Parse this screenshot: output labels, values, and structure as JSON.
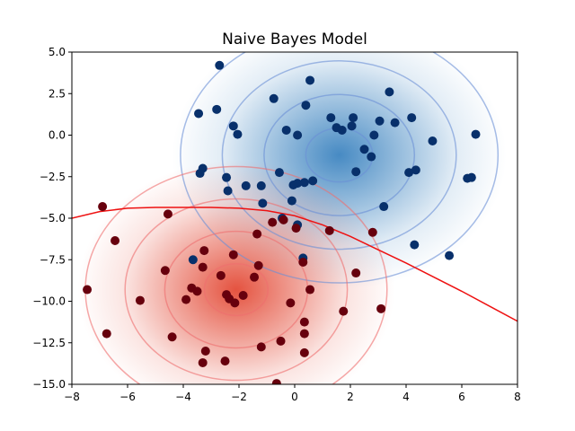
{
  "chart_data": {
    "type": "scatter",
    "title": "Naive Bayes Model",
    "xlabel": "",
    "ylabel": "",
    "xlim": [
      -8,
      8
    ],
    "ylim": [
      -15,
      5
    ],
    "x_ticks": [
      -8,
      -6,
      -4,
      -2,
      0,
      2,
      4,
      6,
      8
    ],
    "x_tick_labels": [
      "−8",
      "−6",
      "−4",
      "−2",
      "0",
      "2",
      "4",
      "6",
      "8"
    ],
    "y_ticks": [
      5,
      2.5,
      0,
      -2.5,
      -5,
      -7.5,
      -10,
      -12.5,
      -15
    ],
    "y_tick_labels": [
      "5.0",
      "2.5",
      "0.0",
      "−2.5",
      "−5.0",
      "−7.5",
      "−10.0",
      "−12.5",
      "−15.0"
    ],
    "grid": false,
    "class_distributions": [
      {
        "color": "#6a8fd6",
        "center": [
          1.6,
          -1.2
        ],
        "sigma": [
          2.0,
          2.7
        ],
        "cmap_top": "#3d84c0"
      },
      {
        "color": "#ee6e6e",
        "center": [
          -2.1,
          -9.3
        ],
        "sigma": [
          1.9,
          2.6
        ],
        "cmap_top": "#e34a36"
      }
    ],
    "contour_levels_sigma": [
      0.6,
      1.35,
      2.1,
      2.85
    ],
    "decision_boundary": {
      "color": "#ee1111",
      "x": [
        -8,
        -7,
        -6,
        -5,
        -4,
        -3,
        -2,
        -1,
        0,
        1,
        2,
        3,
        4,
        5,
        6,
        7,
        8
      ],
      "y": [
        -5.0,
        -4.6,
        -4.4,
        -4.35,
        -4.35,
        -4.35,
        -4.4,
        -4.55,
        -4.85,
        -5.4,
        -6.1,
        -6.9,
        -7.7,
        -8.55,
        -9.4,
        -10.3,
        -11.2
      ]
    },
    "series": [
      {
        "color": "#08306b",
        "points": [
          [
            -2.7,
            4.2
          ],
          [
            0.55,
            3.3
          ],
          [
            3.4,
            2.6
          ],
          [
            -0.75,
            2.2
          ],
          [
            0.4,
            1.8
          ],
          [
            -3.45,
            1.3
          ],
          [
            -2.8,
            1.55
          ],
          [
            1.3,
            1.05
          ],
          [
            2.1,
            1.05
          ],
          [
            3.05,
            0.85
          ],
          [
            3.6,
            0.75
          ],
          [
            4.2,
            1.05
          ],
          [
            2.05,
            0.55
          ],
          [
            1.5,
            0.45
          ],
          [
            1.7,
            0.3
          ],
          [
            -2.2,
            0.55
          ],
          [
            -2.05,
            0.05
          ],
          [
            -0.3,
            0.3
          ],
          [
            0.1,
            0.0
          ],
          [
            2.85,
            0.0
          ],
          [
            4.95,
            -0.35
          ],
          [
            6.5,
            0.05
          ],
          [
            2.5,
            -0.85
          ],
          [
            2.75,
            -1.3
          ],
          [
            -3.3,
            -2.0
          ],
          [
            -3.4,
            -2.3
          ],
          [
            2.2,
            -2.2
          ],
          [
            4.35,
            -2.1
          ],
          [
            4.1,
            -2.25
          ],
          [
            -2.45,
            -2.55
          ],
          [
            -0.55,
            -2.25
          ],
          [
            0.65,
            -2.75
          ],
          [
            0.35,
            -2.85
          ],
          [
            0.1,
            -2.9
          ],
          [
            -0.05,
            -3.0
          ],
          [
            -1.75,
            -3.05
          ],
          [
            -1.2,
            -3.05
          ],
          [
            -2.4,
            -3.35
          ],
          [
            6.2,
            -2.6
          ],
          [
            6.35,
            -2.55
          ],
          [
            -0.1,
            -3.95
          ],
          [
            -1.15,
            -4.1
          ],
          [
            3.2,
            -4.3
          ],
          [
            -0.45,
            -5.0
          ],
          [
            0.1,
            -5.4
          ],
          [
            4.3,
            -6.6
          ],
          [
            5.55,
            -7.25
          ],
          [
            0.3,
            -7.4
          ],
          [
            -3.65,
            -7.5
          ]
        ]
      },
      {
        "color": "#67000d",
        "points": [
          [
            -6.9,
            -4.3
          ],
          [
            -4.55,
            -4.75
          ],
          [
            -0.8,
            -5.25
          ],
          [
            -0.4,
            -5.1
          ],
          [
            0.05,
            -5.6
          ],
          [
            1.25,
            -5.75
          ],
          [
            2.8,
            -5.85
          ],
          [
            -6.45,
            -6.35
          ],
          [
            -1.35,
            -5.95
          ],
          [
            -3.25,
            -6.95
          ],
          [
            -2.2,
            -7.2
          ],
          [
            -3.3,
            -7.95
          ],
          [
            -1.3,
            -7.85
          ],
          [
            0.3,
            -7.65
          ],
          [
            -4.65,
            -8.15
          ],
          [
            2.2,
            -8.3
          ],
          [
            -2.65,
            -8.45
          ],
          [
            -1.45,
            -8.55
          ],
          [
            -3.7,
            -9.2
          ],
          [
            -3.5,
            -9.4
          ],
          [
            -7.45,
            -9.3
          ],
          [
            0.55,
            -9.3
          ],
          [
            -2.45,
            -9.6
          ],
          [
            -1.85,
            -9.65
          ],
          [
            -2.35,
            -9.85
          ],
          [
            -3.9,
            -9.9
          ],
          [
            -5.55,
            -9.95
          ],
          [
            -2.15,
            -10.1
          ],
          [
            -0.15,
            -10.1
          ],
          [
            3.1,
            -10.45
          ],
          [
            1.75,
            -10.6
          ],
          [
            0.35,
            -11.25
          ],
          [
            -6.75,
            -11.95
          ],
          [
            0.35,
            -11.95
          ],
          [
            -4.4,
            -12.15
          ],
          [
            -0.5,
            -12.4
          ],
          [
            -1.2,
            -12.75
          ],
          [
            -3.2,
            -13.0
          ],
          [
            0.35,
            -13.1
          ],
          [
            -2.5,
            -13.6
          ],
          [
            -3.3,
            -13.7
          ],
          [
            -0.65,
            -14.95
          ]
        ]
      }
    ]
  }
}
